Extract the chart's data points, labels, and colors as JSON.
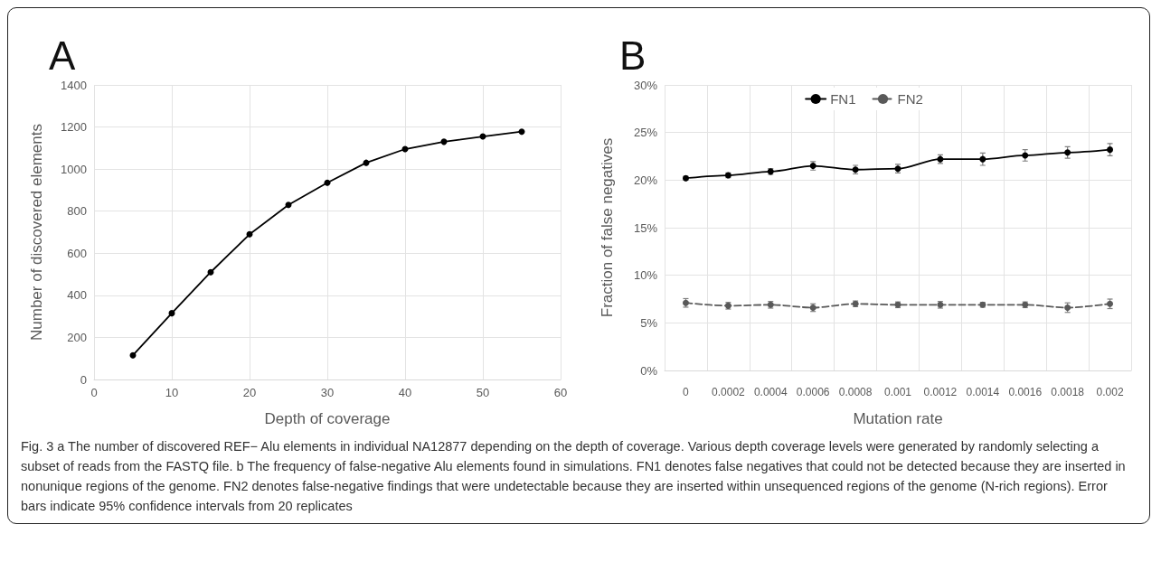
{
  "chart_data": [
    {
      "type": "line",
      "title": "A",
      "xlabel": "Depth of coverage",
      "ylabel": "Number of discovered elements",
      "x": [
        5,
        10,
        15,
        20,
        25,
        30,
        35,
        40,
        45,
        50,
        55
      ],
      "series": [
        {
          "color": "#000000",
          "values": [
            115,
            315,
            510,
            690,
            830,
            935,
            1030,
            1095,
            1130,
            1155,
            1178
          ]
        }
      ],
      "xlim": [
        0,
        60
      ],
      "xticks": [
        0,
        10,
        20,
        30,
        40,
        50,
        60
      ],
      "ylim": [
        0,
        1400
      ],
      "yticks": [
        0,
        200,
        400,
        600,
        800,
        1000,
        1200,
        1400
      ],
      "grid": true,
      "legend": false,
      "marker": "circle",
      "line_style": "solid"
    },
    {
      "type": "line",
      "title": "B",
      "xlabel": "Mutation rate",
      "ylabel": "Fraction of false negatives",
      "categories": [
        "0",
        "0.0002",
        "0.0004",
        "0.0006",
        "0.0008",
        "0.001",
        "0.0012",
        "0.0014",
        "0.0016",
        "0.0018",
        "0.002"
      ],
      "series": [
        {
          "name": "FN1",
          "color": "#000000",
          "line_style": "solid",
          "values": [
            20.2,
            20.5,
            20.9,
            21.5,
            21.1,
            21.2,
            22.2,
            22.2,
            22.6,
            22.9,
            23.2
          ],
          "errors": [
            0.2,
            0.25,
            0.3,
            0.45,
            0.45,
            0.45,
            0.45,
            0.65,
            0.6,
            0.6,
            0.65
          ]
        },
        {
          "name": "FN2",
          "color": "#595959",
          "line_style": "dashed",
          "values": [
            7.1,
            6.8,
            6.9,
            6.6,
            7.0,
            6.9,
            6.9,
            6.9,
            6.9,
            6.6,
            7.0
          ],
          "errors": [
            0.45,
            0.35,
            0.35,
            0.4,
            0.3,
            0.3,
            0.35,
            0.25,
            0.3,
            0.5,
            0.5
          ]
        }
      ],
      "ylim": [
        0,
        30
      ],
      "yticks": [
        {
          "value": 0,
          "label": "0%"
        },
        {
          "value": 5,
          "label": "5%"
        },
        {
          "value": 10,
          "label": "10%"
        },
        {
          "value": 15,
          "label": "15%"
        },
        {
          "value": 20,
          "label": "20%"
        },
        {
          "value": 25,
          "label": "25%"
        },
        {
          "value": 30,
          "label": "30%"
        }
      ],
      "grid": true,
      "legend": "top",
      "marker": "circle",
      "annotations": [
        "Fig. 3 a The number of discovered REF− Alu elements in individual NA12877 depending on the depth of coverage. Various depth coverage levels were generated by randomly selecting a subset of reads from the FASTQ file. b The frequency of false-negative Alu elements found in simulations. FN1 denotes false negatives that could not be detected because they are inserted in nonunique regions of the genome. FN2 denotes false-negative findings that were undetectable because they are inserted within unsequenced regions of the genome (N-rich regions). Error bars indicate 95% confidence intervals from 20 replicates"
      ]
    }
  ]
}
